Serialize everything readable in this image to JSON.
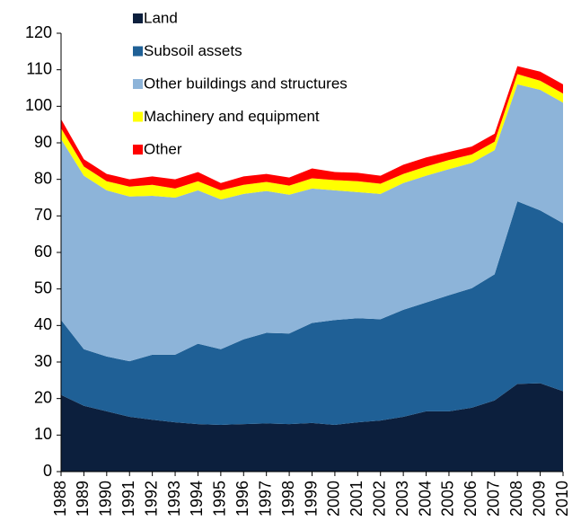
{
  "chart_data": {
    "type": "stacked_area",
    "categories": [
      "1988",
      "1989",
      "1990",
      "1991",
      "1992",
      "1993",
      "1994",
      "1995",
      "1996",
      "1997",
      "1998",
      "1999",
      "2000",
      "2001",
      "2002",
      "2003",
      "2004",
      "2005",
      "2006",
      "2007",
      "2008",
      "2009",
      "2010"
    ],
    "series": [
      {
        "name": "Land",
        "color": "#0c1f3d",
        "values": [
          21,
          18,
          16.5,
          15,
          14.2,
          13.5,
          13,
          12.8,
          13,
          13.2,
          13,
          13.3,
          12.8,
          13.5,
          14,
          15,
          16.5,
          16.5,
          17.5,
          19.5,
          24,
          24.2,
          22
        ]
      },
      {
        "name": "Subsoil assets",
        "color": "#1f6096",
        "values": [
          20.5,
          15.5,
          15,
          15.2,
          17.8,
          18.5,
          22,
          20.7,
          23.2,
          24.8,
          24.8,
          27.4,
          28.7,
          28.5,
          27.7,
          29.3,
          29.8,
          31.8,
          32.7,
          34.5,
          50,
          47.3,
          46
        ]
      },
      {
        "name": "Other buildings and structures",
        "color": "#8db4d9",
        "values": [
          49.5,
          47.5,
          45.5,
          45.1,
          43.5,
          43,
          42,
          41,
          39.8,
          38.8,
          38,
          36.8,
          35.5,
          34.5,
          34.3,
          34.7,
          34.7,
          34.5,
          34.3,
          34,
          32,
          33,
          33
        ]
      },
      {
        "name": "Machinery and equipment",
        "color": "#ffff00",
        "values": [
          3,
          2.5,
          2.5,
          2.7,
          3,
          2.5,
          2.5,
          2.5,
          2.5,
          2.5,
          2.5,
          2.8,
          2.8,
          3,
          2.8,
          2.5,
          2.5,
          2.5,
          2.3,
          2.3,
          2.8,
          2.5,
          2.5
        ]
      },
      {
        "name": "Other",
        "color": "#ff0000",
        "values": [
          2.5,
          2,
          2,
          2,
          2.3,
          2.5,
          2.5,
          2,
          2.3,
          2.2,
          2.2,
          2.7,
          2.2,
          2.3,
          2.2,
          2.5,
          2.5,
          2.2,
          2.2,
          2.2,
          2.2,
          2.5,
          2.5
        ]
      }
    ],
    "ylim": [
      0,
      120
    ],
    "yticks": [
      0,
      10,
      20,
      30,
      40,
      50,
      60,
      70,
      80,
      90,
      100,
      110,
      120
    ],
    "legend": "upper left"
  }
}
